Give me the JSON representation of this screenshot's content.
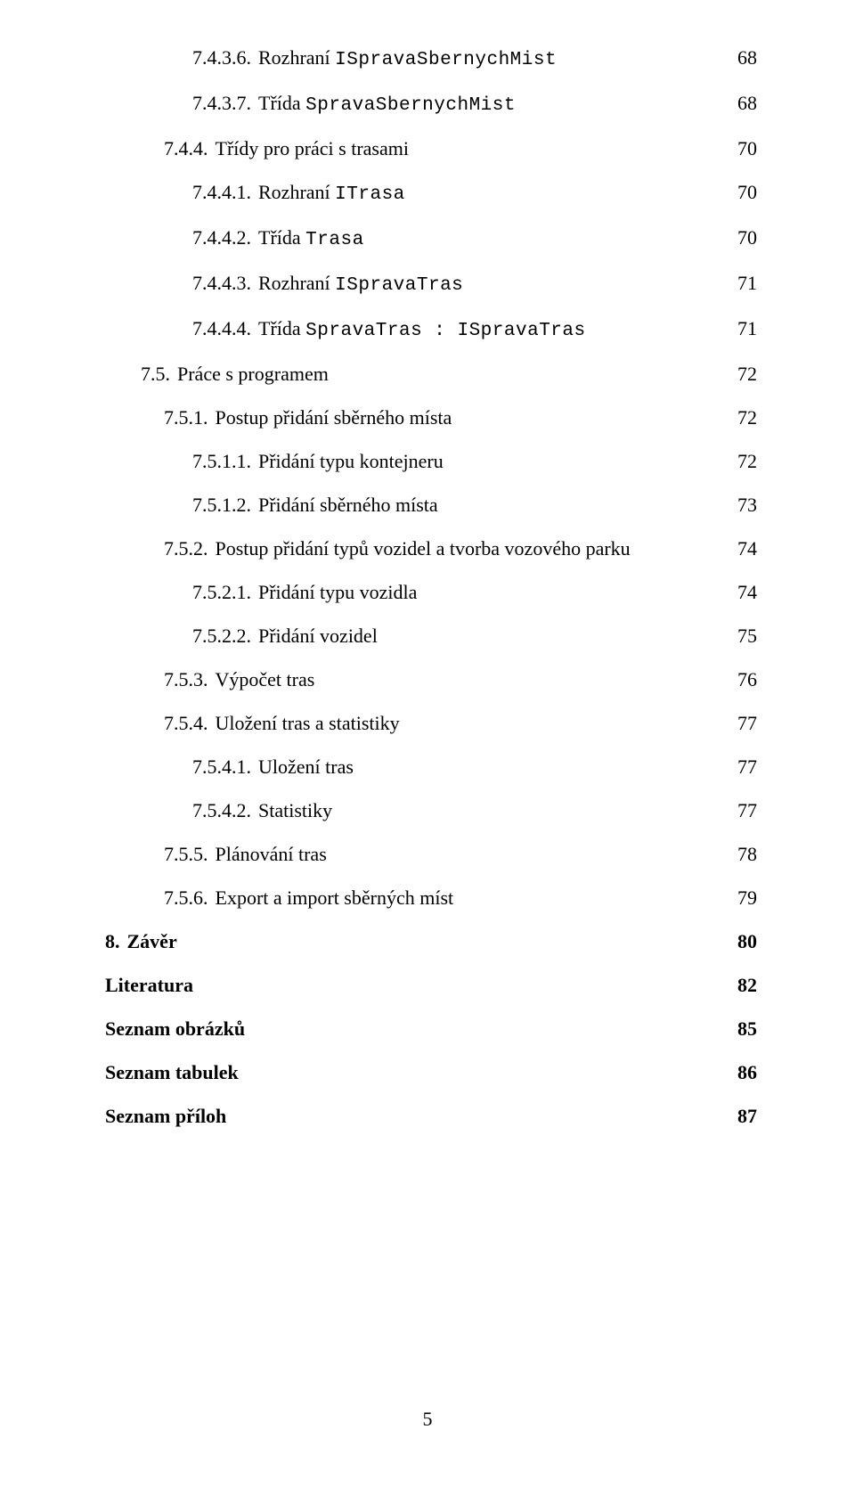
{
  "page_number": "5",
  "entries": [
    {
      "indent": "ind3",
      "num": "7.4.3.6.",
      "title_pre": "Rozhraní ",
      "mono": "ISpravaSbernychMist",
      "title_post": "",
      "page": "68"
    },
    {
      "indent": "ind3",
      "num": "7.4.3.7.",
      "title_pre": "Třída ",
      "mono": "SpravaSbernychMist",
      "title_post": "",
      "page": "68"
    },
    {
      "indent": "ind2",
      "num": "7.4.4.",
      "title_pre": "Třídy pro práci s trasami",
      "mono": "",
      "title_post": "",
      "page": "70"
    },
    {
      "indent": "ind3",
      "num": "7.4.4.1.",
      "title_pre": "Rozhraní ",
      "mono": "ITrasa",
      "title_post": "",
      "page": "70"
    },
    {
      "indent": "ind3",
      "num": "7.4.4.2.",
      "title_pre": "Třída ",
      "mono": "Trasa",
      "title_post": "",
      "page": "70"
    },
    {
      "indent": "ind3",
      "num": "7.4.4.3.",
      "title_pre": "Rozhraní ",
      "mono": "ISpravaTras",
      "title_post": "",
      "page": "71"
    },
    {
      "indent": "ind3",
      "num": "7.4.4.4.",
      "title_pre": "Třída ",
      "mono": "SpravaTras : ISpravaTras",
      "title_post": "",
      "page": "71"
    },
    {
      "indent": "ind1",
      "num": "7.5.",
      "title_pre": "Práce s programem",
      "mono": "",
      "title_post": "",
      "page": "72"
    },
    {
      "indent": "ind2",
      "num": "7.5.1.",
      "title_pre": "Postup přidání sběrného místa",
      "mono": "",
      "title_post": "",
      "page": "72"
    },
    {
      "indent": "ind3",
      "num": "7.5.1.1.",
      "title_pre": "Přidání typu kontejneru",
      "mono": "",
      "title_post": "",
      "page": "72"
    },
    {
      "indent": "ind3",
      "num": "7.5.1.2.",
      "title_pre": "Přidání sběrného místa",
      "mono": "",
      "title_post": "",
      "page": "73"
    },
    {
      "indent": "ind2",
      "num": "7.5.2.",
      "title_pre": "Postup přidání typů vozidel a tvorba vozového parku",
      "mono": "",
      "title_post": "",
      "page": "74"
    },
    {
      "indent": "ind3",
      "num": "7.5.2.1.",
      "title_pre": "Přidání typu vozidla",
      "mono": "",
      "title_post": "",
      "page": "74"
    },
    {
      "indent": "ind3",
      "num": "7.5.2.2.",
      "title_pre": "Přidání vozidel",
      "mono": "",
      "title_post": "",
      "page": "75"
    },
    {
      "indent": "ind2",
      "num": "7.5.3.",
      "title_pre": "Výpočet tras",
      "mono": "",
      "title_post": "",
      "page": "76"
    },
    {
      "indent": "ind2",
      "num": "7.5.4.",
      "title_pre": "Uložení tras a statistiky",
      "mono": "",
      "title_post": "",
      "page": "77"
    },
    {
      "indent": "ind3",
      "num": "7.5.4.1.",
      "title_pre": "Uložení tras",
      "mono": "",
      "title_post": "",
      "page": "77"
    },
    {
      "indent": "ind3",
      "num": "7.5.4.2.",
      "title_pre": "Statistiky",
      "mono": "",
      "title_post": "",
      "page": "77"
    },
    {
      "indent": "ind2",
      "num": "7.5.5.",
      "title_pre": "Plánování tras",
      "mono": "",
      "title_post": "",
      "page": "78"
    },
    {
      "indent": "ind2",
      "num": "7.5.6.",
      "title_pre": "Export a import sběrných míst",
      "mono": "",
      "title_post": "",
      "page": "79"
    },
    {
      "indent": "ind0b",
      "num": "8.",
      "title_pre": "Závěr",
      "mono": "",
      "title_post": "",
      "page": "80",
      "bold": true
    },
    {
      "indent": "ind-lit",
      "num": "",
      "title_pre": "Literatura",
      "mono": "",
      "title_post": "",
      "page": "82",
      "bold": true
    },
    {
      "indent": "ind-lit",
      "num": "",
      "title_pre": "Seznam obrázků",
      "mono": "",
      "title_post": "",
      "page": "85",
      "bold": true
    },
    {
      "indent": "ind-lit",
      "num": "",
      "title_pre": "Seznam tabulek",
      "mono": "",
      "title_post": "",
      "page": "86",
      "bold": true
    },
    {
      "indent": "ind-lit",
      "num": "",
      "title_pre": "Seznam příloh",
      "mono": "",
      "title_post": "",
      "page": "87",
      "bold": true
    }
  ]
}
